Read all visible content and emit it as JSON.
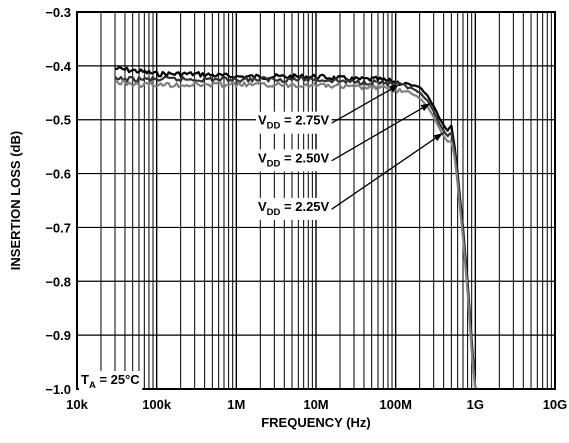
{
  "chart_data": {
    "type": "line",
    "title": "",
    "xlabel": "FREQUENCY (Hz)",
    "ylabel": "INSERTION LOSS (dB)",
    "xscale": "log",
    "xlim": [
      10000,
      10000000000
    ],
    "ylim": [
      -1.0,
      -0.3
    ],
    "grid": true,
    "x_ticks": [
      {
        "value": 10000,
        "label": "10k"
      },
      {
        "value": 100000,
        "label": "100k"
      },
      {
        "value": 1000000,
        "label": "1M"
      },
      {
        "value": 10000000,
        "label": "10M"
      },
      {
        "value": 100000000,
        "label": "100M"
      },
      {
        "value": 1000000000,
        "label": "1G"
      },
      {
        "value": 10000000000,
        "label": "10G"
      }
    ],
    "y_ticks": [
      {
        "value": -0.3,
        "label": "−0.3"
      },
      {
        "value": -0.4,
        "label": "−0.4"
      },
      {
        "value": -0.5,
        "label": "−0.5"
      },
      {
        "value": -0.6,
        "label": "−0.6"
      },
      {
        "value": -0.7,
        "label": "−0.7"
      },
      {
        "value": -0.8,
        "label": "−0.8"
      },
      {
        "value": -0.9,
        "label": "−0.9"
      },
      {
        "value": -1.0,
        "label": "−1.0"
      }
    ],
    "series": [
      {
        "color": "#000000",
        "x": [
          30000,
          60000,
          100000,
          300000,
          1000000,
          3000000,
          10000000,
          30000000,
          60000000,
          100000000,
          150000000,
          200000000,
          250000000,
          300000000,
          350000000,
          400000000,
          450000000,
          500000000,
          550000000,
          600000000,
          700000000,
          800000000,
          900000000,
          1000000000
        ],
        "y": [
          -0.405,
          -0.41,
          -0.415,
          -0.415,
          -0.42,
          -0.42,
          -0.42,
          -0.425,
          -0.425,
          -0.43,
          -0.435,
          -0.44,
          -0.455,
          -0.475,
          -0.495,
          -0.51,
          -0.52,
          -0.51,
          -0.55,
          -0.6,
          -0.7,
          -0.8,
          -0.91,
          -1.0
        ]
      },
      {
        "color": "#333333",
        "x": [
          30000,
          60000,
          100000,
          300000,
          1000000,
          3000000,
          10000000,
          30000000,
          60000000,
          100000000,
          150000000,
          200000000,
          250000000,
          300000000,
          350000000,
          400000000,
          450000000,
          500000000,
          550000000,
          600000000,
          700000000,
          800000000,
          900000000,
          1000000000
        ],
        "y": [
          -0.425,
          -0.425,
          -0.425,
          -0.425,
          -0.425,
          -0.425,
          -0.425,
          -0.43,
          -0.43,
          -0.435,
          -0.44,
          -0.45,
          -0.465,
          -0.485,
          -0.505,
          -0.52,
          -0.53,
          -0.525,
          -0.56,
          -0.61,
          -0.71,
          -0.81,
          -0.92,
          -1.0
        ]
      },
      {
        "color": "#808080",
        "x": [
          30000,
          60000,
          100000,
          300000,
          1000000,
          3000000,
          10000000,
          30000000,
          60000000,
          100000000,
          150000000,
          200000000,
          250000000,
          300000000,
          350000000,
          400000000,
          450000000,
          500000000,
          550000000,
          600000000,
          700000000,
          800000000,
          900000000,
          1000000000
        ],
        "y": [
          -0.43,
          -0.435,
          -0.435,
          -0.435,
          -0.435,
          -0.435,
          -0.435,
          -0.44,
          -0.44,
          -0.445,
          -0.45,
          -0.46,
          -0.475,
          -0.495,
          -0.515,
          -0.53,
          -0.54,
          -0.54,
          -0.57,
          -0.62,
          -0.72,
          -0.82,
          -0.93,
          -1.0
        ]
      }
    ],
    "annotations": [
      {
        "main": "V",
        "sub": "DD",
        "suffix": " = 2.75V",
        "label_at": [
          40000000,
          -0.5
        ],
        "arrow_to": [
          110000000,
          -0.435
        ]
      },
      {
        "main": "V",
        "sub": "DD",
        "suffix": " = 2.50V",
        "label_at": [
          40000000,
          -0.57
        ],
        "arrow_to": [
          270000000,
          -0.47
        ]
      },
      {
        "main": "V",
        "sub": "DD",
        "suffix": " = 2.25V",
        "label_at": [
          40000000,
          -0.66
        ],
        "arrow_to": [
          390000000,
          -0.525
        ]
      }
    ],
    "condition": {
      "main": "T",
      "sub": "A",
      "suffix": " = 25°C"
    }
  }
}
